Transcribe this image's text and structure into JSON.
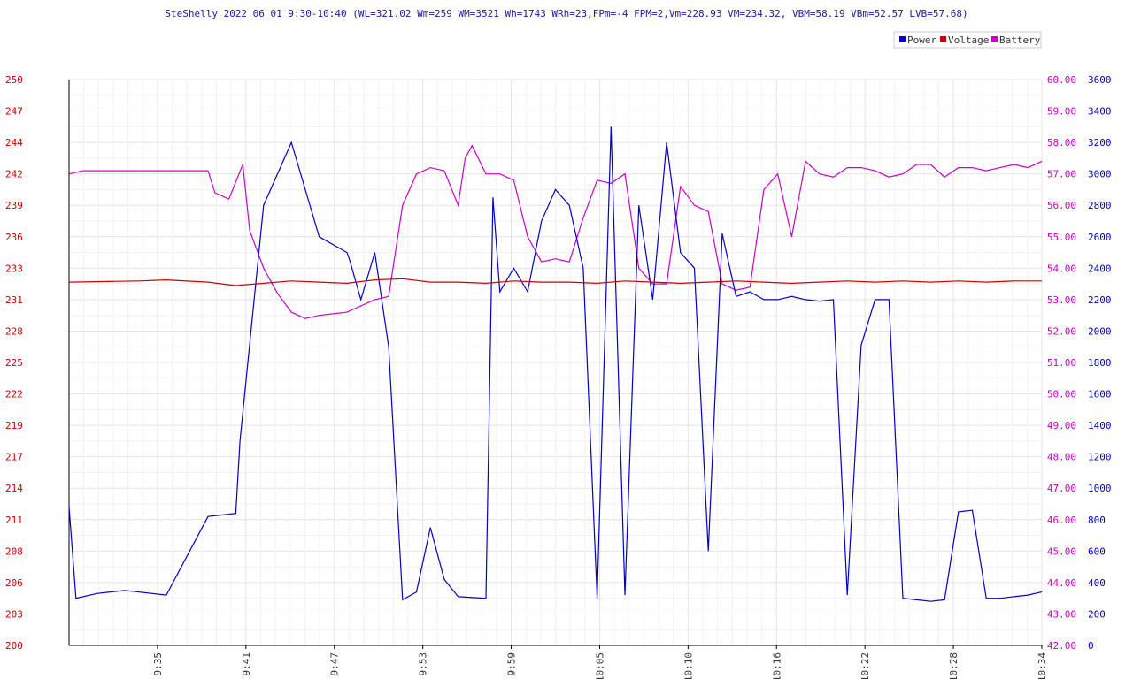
{
  "chart_data": {
    "type": "line",
    "title": "SteShelly 2022_06_01 9:30-10:40 (WL=321.02 Wm=259 WM=3521 Wh=1743 WRh=23,FPm=-4 FPM=2,Vm=228.93 VM=234.32, VBM=58.19 VBm=52.57 LVB=57.68)",
    "legend": [
      {
        "name": "Power",
        "color": "#0000cc"
      },
      {
        "name": "Voltage",
        "color": "#cc0000"
      },
      {
        "name": "Battery",
        "color": "#cc00cc"
      }
    ],
    "legend_position": "top-right",
    "grid": true,
    "x_ticks": [
      "9:35",
      "9:41",
      "9:47",
      "9:53",
      "9:59",
      "10:05",
      "10:10",
      "10:16",
      "10:22",
      "10:28",
      "10:34"
    ],
    "voltage_axis": {
      "ticks": [
        "250",
        "247",
        "244",
        "242",
        "239",
        "236",
        "233",
        "231",
        "228",
        "225",
        "222",
        "219",
        "217",
        "214",
        "211",
        "208",
        "206",
        "203",
        "200"
      ],
      "range": [
        200,
        250
      ]
    },
    "battery_axis": {
      "ticks": [
        "60.00",
        "59.00",
        "58.00",
        "57.00",
        "56.00",
        "55.00",
        "54.00",
        "53.00",
        "52.00",
        "51.00",
        "50.00",
        "49.00",
        "48.00",
        "47.00",
        "46.00",
        "45.00",
        "44.00",
        "43.00",
        "42.00"
      ],
      "range": [
        42,
        60
      ]
    },
    "power_axis": {
      "ticks": [
        "3600",
        "3400",
        "3200",
        "3000",
        "2800",
        "2600",
        "2400",
        "2200",
        "2000",
        "1800",
        "1600",
        "1400",
        "1200",
        "1000",
        "800",
        "600",
        "400",
        "200",
        "0"
      ],
      "range": [
        0,
        3600
      ]
    },
    "series": [
      {
        "name": "Power",
        "axis": "power",
        "x": [
          0,
          0.5,
          2,
          4,
          7,
          10,
          12,
          12.3,
          14,
          16,
          18,
          20,
          20.2,
          21,
          22,
          23,
          24,
          25,
          26,
          27,
          28,
          30,
          30.5,
          31,
          32,
          33,
          34,
          35,
          36,
          37,
          38,
          39,
          40,
          41,
          42,
          43,
          44,
          45,
          46,
          47,
          48,
          49,
          50,
          51,
          52,
          53,
          54,
          55,
          56,
          57,
          58,
          59,
          60,
          61,
          62,
          63,
          64,
          65,
          66,
          67,
          68,
          69,
          70
        ],
        "y": [
          880,
          300,
          330,
          350,
          320,
          820,
          840,
          1300,
          2800,
          3200,
          2600,
          2500,
          2450,
          2200,
          2500,
          1900,
          290,
          340,
          750,
          420,
          310,
          300,
          2850,
          2250,
          2400,
          2250,
          2700,
          2900,
          2800,
          2400,
          300,
          3300,
          320,
          2800,
          2200,
          3200,
          2500,
          2400,
          600,
          2620,
          2220,
          2250,
          2200,
          2200,
          2220,
          2200,
          2190,
          2200,
          320,
          1910,
          2200,
          2200,
          300,
          290,
          280,
          290,
          850,
          860,
          300,
          300,
          310,
          320,
          340
        ]
      },
      {
        "name": "Voltage",
        "axis": "voltage",
        "x": [
          0,
          5,
          7,
          10,
          12,
          14,
          16,
          18,
          20,
          22,
          24,
          26,
          28,
          30,
          32,
          34,
          36,
          38,
          40,
          42,
          44,
          46,
          48,
          50,
          52,
          54,
          56,
          58,
          60,
          62,
          64,
          66,
          68,
          70
        ],
        "y": [
          232.1,
          232.2,
          232.3,
          232.1,
          231.8,
          232.0,
          232.2,
          232.1,
          232.0,
          232.3,
          232.4,
          232.1,
          232.1,
          232.0,
          232.2,
          232.1,
          232.1,
          232.0,
          232.2,
          232.1,
          232.0,
          232.1,
          232.2,
          232.1,
          232.0,
          232.1,
          232.2,
          232.1,
          232.2,
          232.1,
          232.2,
          232.1,
          232.2,
          232.2
        ]
      },
      {
        "name": "Battery",
        "axis": "battery",
        "x": [
          0,
          1,
          4,
          8,
          10,
          10.5,
          11.5,
          12.5,
          13,
          14,
          15,
          16,
          17,
          18,
          20,
          22,
          23,
          24,
          25,
          26,
          27,
          28,
          28.5,
          29,
          30,
          31,
          32,
          33,
          34,
          35,
          36,
          37,
          38,
          39,
          40,
          41,
          42,
          43,
          44,
          45,
          46,
          47,
          48,
          49,
          50,
          51,
          52,
          53,
          54,
          55,
          56,
          57,
          58,
          59,
          60,
          61,
          62,
          63,
          64,
          65,
          66,
          67,
          68,
          69,
          70
        ],
        "y": [
          57.0,
          57.1,
          57.1,
          57.1,
          57.1,
          56.4,
          56.2,
          57.3,
          55.2,
          54.0,
          53.2,
          52.6,
          52.4,
          52.5,
          52.6,
          53.0,
          53.1,
          56.0,
          57.0,
          57.2,
          57.1,
          56.0,
          57.5,
          57.9,
          57.0,
          57.0,
          56.8,
          55.0,
          54.2,
          54.3,
          54.2,
          55.6,
          56.8,
          56.7,
          57.0,
          54.0,
          53.5,
          53.5,
          56.6,
          56.0,
          55.8,
          53.5,
          53.3,
          53.4,
          56.5,
          57.0,
          55.0,
          57.4,
          57.0,
          56.9,
          57.2,
          57.2,
          57.1,
          56.9,
          57.0,
          57.3,
          57.3,
          56.9,
          57.2,
          57.2,
          57.1,
          57.2,
          57.3,
          57.2,
          57.4
        ]
      }
    ]
  }
}
